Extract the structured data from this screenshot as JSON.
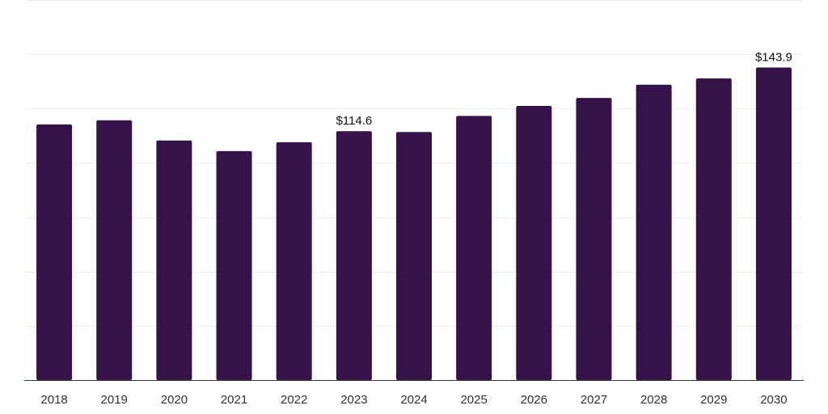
{
  "chart_data": {
    "type": "bar",
    "title": "",
    "xlabel": "",
    "ylabel": "",
    "categories": [
      "2018",
      "2019",
      "2020",
      "2021",
      "2022",
      "2023",
      "2024",
      "2025",
      "2026",
      "2027",
      "2028",
      "2029",
      "2030"
    ],
    "values": [
      117.7,
      119.6,
      110.3,
      105.4,
      109.5,
      114.6,
      114.2,
      121.6,
      126.2,
      129.9,
      136.0,
      138.9,
      143.9
    ],
    "data_labels": [
      {
        "category": "2023",
        "text": "$114.6"
      },
      {
        "category": "2030",
        "text": "$143.9"
      }
    ],
    "ylim": [
      0,
      175
    ],
    "y_gridlines": [
      25,
      50,
      75,
      100,
      125,
      150,
      175
    ],
    "y_tick_labels_shown": false,
    "grid": true,
    "legend": "none",
    "bar_color": "#36124a"
  }
}
